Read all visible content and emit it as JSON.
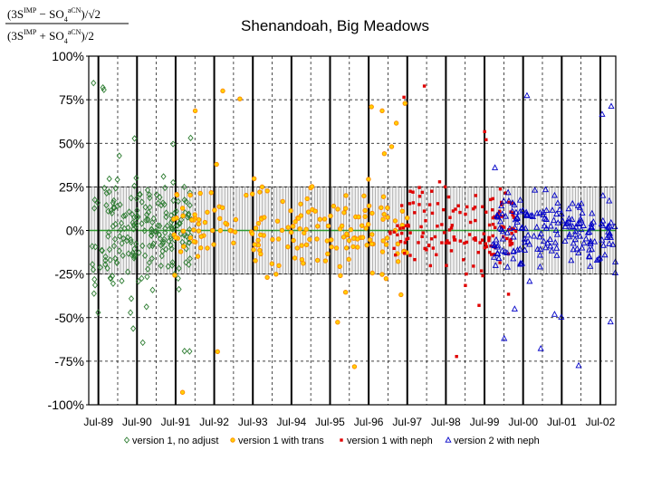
{
  "chart_data": {
    "type": "scatter",
    "title": "Shenandoah, Big Meadows",
    "formula": {
      "numerator_open": "(3S",
      "numerator_sup1": "IMP",
      "numerator_mid": " − SO",
      "numerator_sub2": "4",
      "numerator_sup2": "aCN",
      "numerator_close": ")/√2",
      "denominator_open": "(3S",
      "denominator_sup1": "IMP",
      "denominator_mid": " + SO",
      "denominator_sub2": "4",
      "denominator_sup2": "aCN",
      "denominator_close": ")/2"
    },
    "xlabel": "",
    "ylabel": "",
    "x_tick_labels": [
      "Jul-89",
      "Jul-90",
      "Jul-91",
      "Jul-92",
      "Jul-93",
      "Jul-94",
      "Jul-95",
      "Jul-96",
      "Jul-97",
      "Jul-98",
      "Jul-99",
      "Jul-00",
      "Jul-01",
      "Jul-02"
    ],
    "y_tick_labels": [
      "100%",
      "75%",
      "50%",
      "25%",
      "0%",
      "-25%",
      "-50%",
      "-75%",
      "-100%"
    ],
    "y_ticks": [
      100,
      75,
      50,
      25,
      0,
      -25,
      -50,
      -75,
      -100
    ],
    "ylim": [
      -100,
      100
    ],
    "xlim": [
      1989.25,
      2002.9
    ],
    "tick_years": [
      1989.5,
      1990.5,
      1991.5,
      1992.5,
      1993.5,
      1994.5,
      1995.5,
      1996.5,
      1997.5,
      1998.5,
      1999.5,
      2000.5,
      2001.5,
      2002.5
    ],
    "grid": true,
    "legend_position": "bottom",
    "band": {
      "lower": -25,
      "upper": 25
    },
    "colors": {
      "version1_no_adjust": "#2e7d32",
      "version1_trans": "#ff8c00",
      "version1_neph": "#e00000",
      "version2_neph": "#0000c8",
      "band": "#888888",
      "zero_line": "#2e9a2e"
    },
    "series": [
      {
        "name": "version 1, no adjust",
        "marker": "diamond",
        "x_range": [
          1989.33,
          1991.95
        ],
        "count": 220
      },
      {
        "name": "version 1 with trans",
        "marker": "circle",
        "x_range": [
          1991.45,
          1997.55
        ],
        "count": 200
      },
      {
        "name": "version 1 with neph",
        "marker": "square",
        "x_range": [
          1997.0,
          2000.35
        ],
        "count": 160
      },
      {
        "name": "version 2 with neph",
        "marker": "triangle",
        "x_range": [
          1999.7,
          2002.9
        ],
        "count": 200
      }
    ]
  }
}
